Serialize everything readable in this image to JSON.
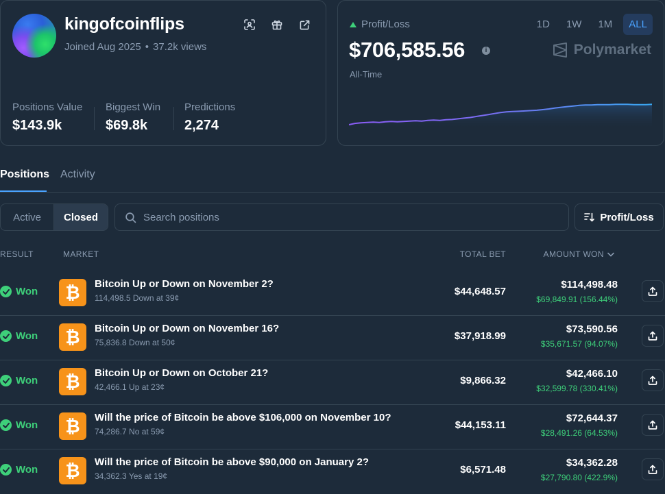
{
  "profile": {
    "username": "kingofcoinflips",
    "joined": "Joined Aug 2025",
    "views": "37.2k views",
    "stats": [
      {
        "label": "Positions Value",
        "value": "$143.9k"
      },
      {
        "label": "Biggest Win",
        "value": "$69.8k"
      },
      {
        "label": "Predictions",
        "value": "2,274"
      }
    ],
    "icons": [
      "scan-icon",
      "gift-icon",
      "external-link-icon"
    ]
  },
  "pnl": {
    "label": "Profit/Loss",
    "amount": "$706,585.56",
    "period": "All-Time",
    "ranges": [
      "1D",
      "1W",
      "1M",
      "ALL"
    ],
    "active_range": "ALL",
    "brand": "Polymarket",
    "colors": {
      "line_start": "#8b5cf6",
      "line_end": "#38a7f0",
      "up": "#3ed07a"
    }
  },
  "chart_data": {
    "type": "line",
    "title": "",
    "xlabel": "",
    "ylabel": "",
    "x_domain": [
      0,
      100
    ],
    "y_domain": [
      0,
      100
    ],
    "series": [
      {
        "x": [
          0,
          2,
          4,
          6,
          8,
          10,
          12,
          14,
          16,
          18,
          20,
          22,
          24,
          26,
          28,
          30,
          32,
          34,
          36,
          38,
          40,
          42,
          44,
          46,
          48,
          50,
          52,
          54,
          56,
          58,
          60,
          62,
          64,
          66,
          68,
          70,
          72,
          74,
          76,
          78,
          80,
          82,
          84,
          86,
          88,
          90,
          92,
          94,
          96,
          98,
          100
        ],
        "values": [
          2,
          6,
          8,
          9,
          10,
          9,
          11,
          12,
          11,
          12,
          13,
          14,
          13,
          15,
          16,
          15,
          17,
          18,
          20,
          22,
          24,
          27,
          30,
          33,
          36,
          39,
          41,
          42,
          43,
          44,
          45,
          46,
          48,
          50,
          53,
          55,
          57,
          59,
          61,
          62,
          62,
          63,
          63,
          63,
          64,
          64,
          64,
          63,
          63,
          63,
          64
        ]
      }
    ]
  },
  "tabs": {
    "positions": "Positions",
    "activity": "Activity"
  },
  "filters": {
    "active": "Active",
    "closed": "Closed",
    "search_placeholder": "Search positions",
    "sort_label": "Profit/Loss"
  },
  "table": {
    "headers": {
      "result": "RESULT",
      "market": "MARKET",
      "total_bet": "TOTAL BET",
      "amount_won": "AMOUNT WON"
    },
    "rows": [
      {
        "result": "Won",
        "title": "Bitcoin Up or Down on November 2?",
        "sub": "114,498.5 Down at 39¢",
        "bet": "$44,648.57",
        "won": "$114,498.48",
        "pnl": "$69,849.91 (156.44%)"
      },
      {
        "result": "Won",
        "title": "Bitcoin Up or Down on November 16?",
        "sub": "75,836.8 Down at 50¢",
        "bet": "$37,918.99",
        "won": "$73,590.56",
        "pnl": "$35,671.57 (94.07%)"
      },
      {
        "result": "Won",
        "title": "Bitcoin Up or Down on October 21?",
        "sub": "42,466.1 Up at 23¢",
        "bet": "$9,866.32",
        "won": "$42,466.10",
        "pnl": "$32,599.78 (330.41%)"
      },
      {
        "result": "Won",
        "title": "Will the price of Bitcoin be above $106,000 on November 10?",
        "sub": "74,286.7 No at 59¢",
        "bet": "$44,153.11",
        "won": "$72,644.37",
        "pnl": "$28,491.26 (64.53%)"
      },
      {
        "result": "Won",
        "title": "Will the price of Bitcoin be above $90,000 on January 2?",
        "sub": "34,362.3 Yes at 19¢",
        "bet": "$6,571.48",
        "won": "$34,362.28",
        "pnl": "$27,790.80 (422.9%)"
      }
    ]
  }
}
